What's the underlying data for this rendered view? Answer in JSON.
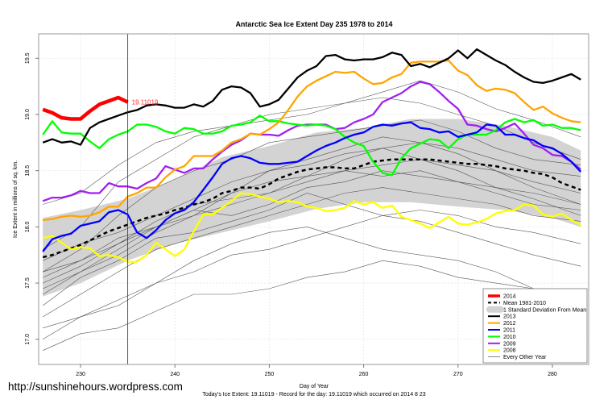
{
  "chart_data": {
    "type": "line",
    "title": "Antarctic Sea Ice Extent Day 235 1978 to 2014",
    "xlabel": "Day of Year",
    "ylabel": "Ice Extent in millions of sq. km.",
    "subtitle": "Today's Ice Extent: 19.11019  - Record for the day: 19.11019 which occurred on 2014 8 23",
    "watermark": "http://sunshinehours.wordpress.com",
    "xlim": [
      225.56,
      283.84
    ],
    "ylim": [
      16.776,
      19.717
    ],
    "x_ticks": [
      "230",
      "240",
      "250",
      "260",
      "270",
      "280"
    ],
    "y_ticks": [
      "17.0",
      "17.5",
      "18.0",
      "18.5",
      "19.0",
      "19.5"
    ],
    "grid": true,
    "current_day": 235,
    "current_value_label": "19.11019",
    "legend_position": "bottom-right",
    "legend": [
      {
        "label": "2014",
        "color": "#ff0000",
        "style": "thick"
      },
      {
        "label": "Mean 1981-2010",
        "color": "#000000",
        "style": "dashed"
      },
      {
        "label": "1 Standard Deviation From Mean",
        "color": "#d3d3d3",
        "style": "band"
      },
      {
        "label": "2013",
        "color": "#000000",
        "style": "line"
      },
      {
        "label": "2012",
        "color": "#ffa500",
        "style": "line"
      },
      {
        "label": "2011",
        "color": "#0000ff",
        "style": "line"
      },
      {
        "label": "2010",
        "color": "#00ff00",
        "style": "line"
      },
      {
        "label": "2009",
        "color": "#a020f0",
        "style": "line"
      },
      {
        "label": "2008",
        "color": "#ffff00",
        "style": "line"
      },
      {
        "label": "Every Other Year",
        "color": "#555555",
        "style": "thin"
      }
    ],
    "sd_band": {
      "x": [
        226,
        230,
        235,
        240,
        245,
        250,
        255,
        260,
        265,
        270,
        275,
        280,
        283
      ],
      "upper": [
        18.08,
        18.15,
        18.25,
        18.42,
        18.62,
        18.72,
        18.84,
        18.88,
        18.96,
        18.96,
        18.9,
        18.8,
        18.68
      ],
      "lower": [
        17.38,
        17.5,
        17.7,
        17.85,
        17.95,
        18.05,
        18.16,
        18.22,
        18.22,
        18.18,
        18.15,
        18.08,
        18.0
      ]
    },
    "other_years": {
      "x": [
        226,
        230,
        234,
        238,
        242,
        246,
        250,
        254,
        258,
        262,
        266,
        270,
        274,
        278,
        283
      ],
      "series": [
        [
          17.55,
          17.7,
          17.9,
          18.0,
          18.1,
          18.2,
          18.3,
          18.4,
          18.5,
          18.55,
          18.6,
          18.55,
          18.5,
          18.4,
          18.3
        ],
        [
          17.4,
          17.6,
          17.8,
          18.0,
          18.15,
          18.3,
          18.4,
          18.45,
          18.6,
          18.7,
          18.75,
          18.7,
          18.6,
          18.5,
          18.45
        ],
        [
          17.2,
          17.4,
          17.6,
          17.8,
          17.9,
          18.0,
          18.1,
          18.2,
          18.3,
          18.35,
          18.3,
          18.25,
          18.2,
          18.1,
          18.05
        ],
        [
          17.0,
          17.2,
          17.35,
          17.5,
          17.6,
          17.75,
          17.8,
          17.9,
          18.0,
          18.1,
          18.15,
          18.1,
          18.0,
          17.95,
          17.85
        ],
        [
          16.9,
          17.05,
          17.1,
          17.25,
          17.4,
          17.4,
          17.45,
          17.55,
          17.6,
          17.7,
          17.65,
          17.55,
          17.5,
          17.45,
          17.4
        ],
        [
          17.6,
          17.8,
          18.1,
          18.35,
          18.5,
          18.6,
          18.75,
          18.8,
          18.85,
          18.9,
          18.95,
          18.85,
          18.7,
          18.6,
          18.55
        ],
        [
          17.8,
          18.0,
          18.4,
          18.6,
          18.8,
          18.9,
          18.95,
          19.0,
          19.1,
          19.2,
          19.3,
          19.2,
          19.05,
          18.95,
          18.8
        ],
        [
          18.2,
          18.3,
          18.55,
          18.75,
          18.85,
          18.9,
          19.0,
          19.05,
          19.1,
          19.15,
          19.1,
          19.0,
          18.9,
          18.75,
          18.6
        ],
        [
          17.5,
          17.65,
          17.85,
          18.0,
          18.15,
          18.1,
          18.2,
          18.35,
          18.4,
          18.5,
          18.45,
          18.4,
          18.35,
          18.3,
          18.2
        ],
        [
          17.3,
          17.55,
          17.7,
          17.9,
          17.95,
          18.05,
          18.15,
          18.3,
          18.2,
          18.1,
          18.05,
          17.95,
          17.85,
          17.75,
          17.65
        ],
        [
          17.7,
          17.85,
          17.95,
          18.1,
          18.25,
          18.4,
          18.5,
          18.55,
          18.65,
          18.7,
          18.6,
          18.5,
          18.35,
          18.25,
          18.1
        ],
        [
          17.6,
          17.7,
          17.85,
          18.05,
          18.2,
          18.25,
          18.3,
          18.45,
          18.5,
          18.45,
          18.5,
          18.4,
          18.3,
          18.2,
          18.15
        ],
        [
          17.1,
          17.2,
          17.3,
          17.5,
          17.7,
          17.85,
          17.95,
          18.0,
          17.9,
          17.8,
          17.75,
          17.7,
          17.6,
          17.45,
          17.3
        ],
        [
          17.45,
          17.6,
          17.75,
          17.95,
          18.1,
          18.3,
          18.5,
          18.6,
          18.7,
          18.8,
          18.75,
          18.65,
          18.5,
          18.35,
          18.2
        ]
      ]
    },
    "x_start": 226,
    "mean": [
      17.73,
      17.75,
      17.78,
      17.81,
      17.84,
      17.88,
      17.92,
      17.96,
      17.99,
      18.02,
      18.05,
      18.08,
      18.1,
      18.12,
      18.15,
      18.17,
      18.2,
      18.22,
      18.25,
      18.3,
      18.32,
      18.35,
      18.35,
      18.34,
      18.38,
      18.43,
      18.46,
      18.49,
      18.51,
      18.52,
      18.53,
      18.53,
      18.52,
      18.52,
      18.55,
      18.58,
      18.59,
      18.6,
      18.6,
      18.6,
      18.6,
      18.6,
      18.59,
      18.58,
      18.57,
      18.56,
      18.56,
      18.55,
      18.54,
      18.52,
      18.51,
      18.5,
      18.48,
      18.47,
      18.44,
      18.39,
      18.36,
      18.33
    ],
    "series": [
      {
        "name": "2008",
        "color": "#ffff00",
        "values": [
          17.9,
          17.92,
          17.86,
          17.8,
          17.82,
          17.81,
          17.74,
          17.75,
          17.73,
          17.69,
          17.69,
          17.75,
          17.86,
          17.8,
          17.74,
          17.8,
          17.96,
          18.11,
          18.11,
          18.17,
          18.23,
          18.3,
          18.29,
          18.27,
          18.25,
          18.22,
          18.23,
          18.22,
          18.18,
          18.17,
          18.14,
          18.15,
          18.17,
          18.23,
          18.2,
          18.22,
          18.17,
          18.19,
          18.09,
          18.06,
          18.03,
          17.99,
          18.04,
          18.09,
          18.03,
          18.02,
          18.04,
          18.07,
          18.12,
          18.14,
          18.15,
          18.2,
          18.19,
          18.11,
          18.09,
          18.12,
          18.06,
          18.02
        ]
      },
      {
        "name": "2009",
        "color": "#a020f0",
        "values": [
          18.23,
          18.26,
          18.26,
          18.28,
          18.32,
          18.3,
          18.3,
          18.39,
          18.36,
          18.36,
          18.34,
          18.39,
          18.43,
          18.54,
          18.51,
          18.48,
          18.52,
          18.52,
          18.6,
          18.67,
          18.73,
          18.77,
          18.83,
          18.82,
          18.82,
          18.81,
          18.86,
          18.9,
          18.91,
          18.91,
          18.91,
          18.87,
          18.88,
          18.93,
          18.96,
          19.0,
          19.11,
          19.15,
          19.19,
          19.25,
          19.29,
          19.27,
          19.2,
          19.12,
          19.05,
          18.91,
          18.9,
          18.87,
          18.85,
          18.88,
          18.92,
          18.83,
          18.73,
          18.7,
          18.64,
          18.63,
          18.58,
          18.51
        ]
      },
      {
        "name": "2010",
        "color": "#00ff00",
        "values": [
          18.82,
          18.94,
          18.84,
          18.83,
          18.83,
          18.76,
          18.7,
          18.78,
          18.82,
          18.85,
          18.91,
          18.91,
          18.89,
          18.85,
          18.83,
          18.88,
          18.87,
          18.83,
          18.83,
          18.85,
          18.9,
          18.91,
          18.93,
          18.99,
          18.94,
          18.94,
          18.92,
          18.91,
          18.9,
          18.91,
          18.9,
          18.87,
          18.8,
          18.75,
          18.72,
          18.58,
          18.48,
          18.46,
          18.61,
          18.7,
          18.74,
          18.78,
          18.77,
          18.7,
          18.78,
          18.82,
          18.82,
          18.82,
          18.86,
          18.93,
          18.96,
          18.93,
          18.95,
          18.9,
          18.91,
          18.88,
          18.88,
          18.86
        ]
      },
      {
        "name": "2011",
        "color": "#0000ff",
        "values": [
          17.78,
          17.89,
          17.92,
          17.94,
          18.01,
          18.03,
          18.05,
          18.13,
          18.15,
          18.11,
          17.95,
          17.9,
          17.97,
          18.06,
          18.12,
          18.15,
          18.22,
          18.33,
          18.44,
          18.56,
          18.61,
          18.63,
          18.61,
          18.57,
          18.56,
          18.56,
          18.57,
          18.58,
          18.63,
          18.68,
          18.72,
          18.75,
          18.79,
          18.82,
          18.84,
          18.89,
          18.91,
          18.9,
          18.92,
          18.93,
          18.88,
          18.87,
          18.84,
          18.85,
          18.8,
          18.82,
          18.84,
          18.91,
          18.9,
          18.82,
          18.82,
          18.79,
          18.77,
          18.72,
          18.7,
          18.65,
          18.58,
          18.49
        ]
      },
      {
        "name": "2012",
        "color": "#ffa500",
        "values": [
          18.06,
          18.07,
          18.09,
          18.1,
          18.09,
          18.1,
          18.13,
          18.18,
          18.18,
          18.27,
          18.3,
          18.35,
          18.35,
          18.44,
          18.51,
          18.54,
          18.63,
          18.63,
          18.63,
          18.68,
          18.75,
          18.78,
          18.83,
          18.82,
          18.87,
          18.93,
          19.04,
          19.16,
          19.25,
          19.3,
          19.34,
          19.38,
          19.37,
          19.38,
          19.32,
          19.27,
          19.28,
          19.33,
          19.36,
          19.46,
          19.47,
          19.47,
          19.47,
          19.48,
          19.39,
          19.35,
          19.26,
          19.21,
          19.23,
          19.22,
          19.19,
          19.11,
          19.04,
          19.07,
          19.01,
          18.97,
          18.94,
          18.93
        ]
      },
      {
        "name": "2013",
        "color": "#000000",
        "values": [
          18.75,
          18.78,
          18.75,
          18.76,
          18.73,
          18.88,
          18.93,
          18.96,
          18.99,
          19.02,
          19.04,
          19.08,
          19.09,
          19.08,
          19.06,
          19.06,
          19.09,
          19.07,
          19.12,
          19.22,
          19.25,
          19.24,
          19.19,
          19.07,
          19.09,
          19.13,
          19.23,
          19.33,
          19.39,
          19.43,
          19.52,
          19.53,
          19.49,
          19.48,
          19.49,
          19.49,
          19.51,
          19.55,
          19.53,
          19.43,
          19.45,
          19.42,
          19.46,
          19.5,
          19.57,
          19.5,
          19.58,
          19.53,
          19.48,
          19.44,
          19.38,
          19.33,
          19.29,
          19.28,
          19.3,
          19.33,
          19.36,
          19.31
        ]
      },
      {
        "name": "2014",
        "color": "#ff0000",
        "values": [
          19.045,
          19.015,
          18.97,
          18.96,
          18.96,
          19.03,
          19.09,
          19.12,
          19.15,
          19.11019
        ]
      }
    ]
  }
}
